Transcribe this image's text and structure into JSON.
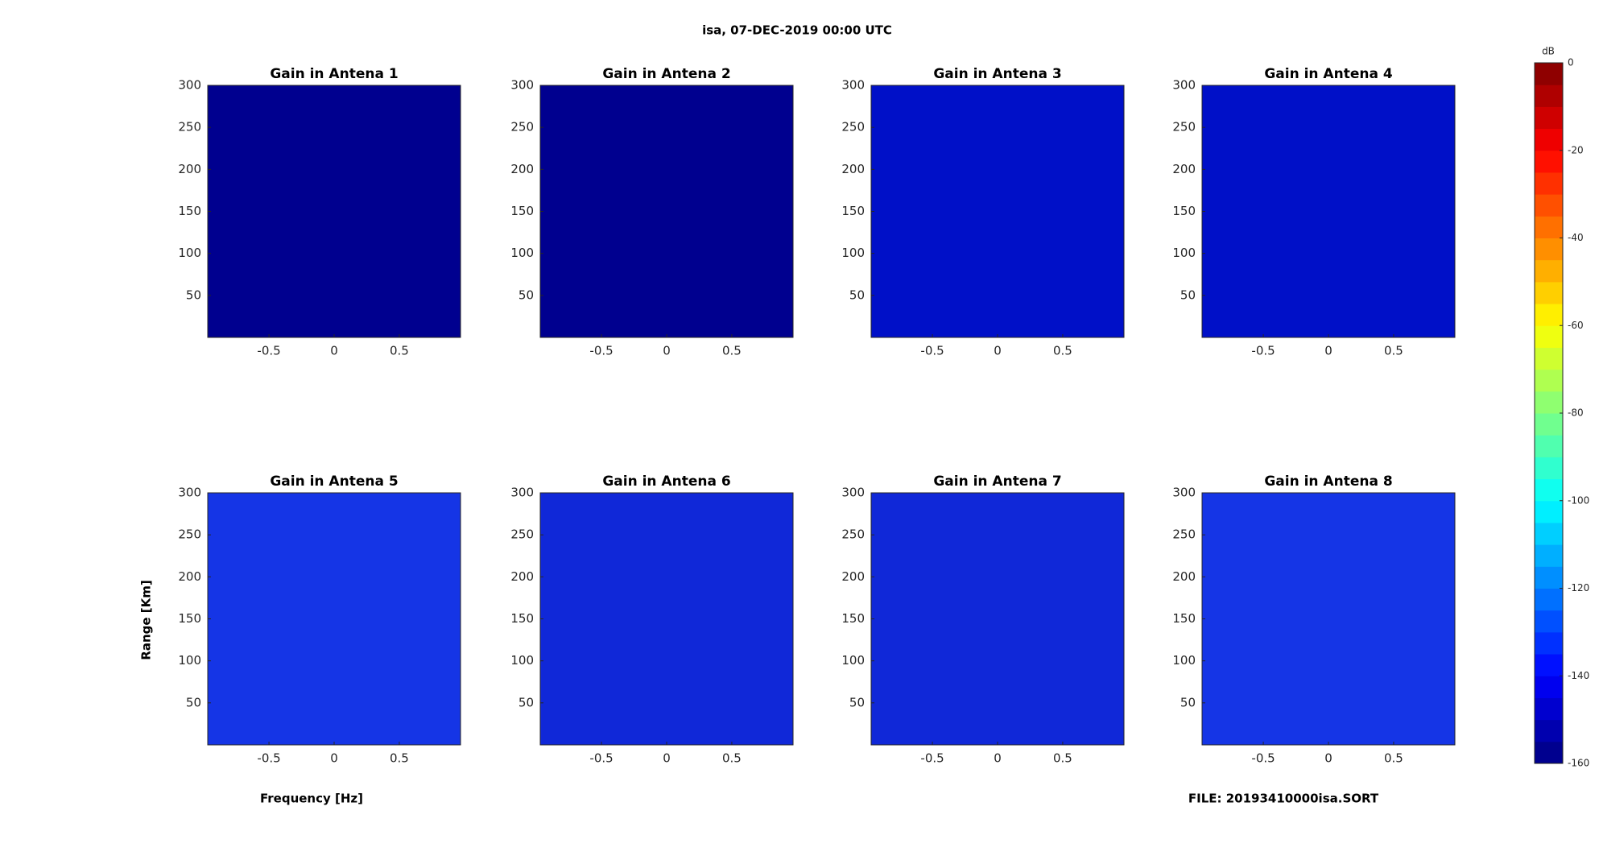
{
  "figure": {
    "title": "isa, 07-DEC-2019 00:00 UTC",
    "xlabel": "Frequency [Hz]",
    "ylabel": "Range [Km]",
    "footer": "FILE: 20193410000isa.SORT"
  },
  "colorbar": {
    "label": "dB",
    "clim": [
      -160,
      0
    ],
    "ticks": [
      0,
      -20,
      -40,
      -60,
      -80,
      -100,
      -120,
      -140,
      -160
    ],
    "colors": [
      "#00008f",
      "#0000af",
      "#0000cf",
      "#0000ef",
      "#0010ff",
      "#0030ff",
      "#0050ff",
      "#0070ff",
      "#008fff",
      "#00afff",
      "#00cfff",
      "#00efff",
      "#10ffef",
      "#30ffcf",
      "#50ffaf",
      "#70ff8f",
      "#8fff70",
      "#afff50",
      "#cfff30",
      "#efff10",
      "#ffef00",
      "#ffcf00",
      "#ffaf00",
      "#ff8f00",
      "#ff7000",
      "#ff5000",
      "#ff3000",
      "#ff1000",
      "#ef0000",
      "#cf0000",
      "#af0000",
      "#8f0000"
    ]
  },
  "chart_data": [
    {
      "type": "heatmap",
      "title": "Gain in Antena 1",
      "color": "#00008f",
      "xlim": [
        -0.97,
        0.97
      ],
      "ylim": [
        0,
        300
      ],
      "xticks": [
        -0.5,
        0,
        0.5
      ],
      "yticks": [
        50,
        100,
        150,
        200,
        250,
        300
      ]
    },
    {
      "type": "heatmap",
      "title": "Gain in Antena 2",
      "color": "#00008f",
      "xlim": [
        -0.97,
        0.97
      ],
      "ylim": [
        0,
        300
      ],
      "xticks": [
        -0.5,
        0,
        0.5
      ],
      "yticks": [
        50,
        100,
        150,
        200,
        250,
        300
      ]
    },
    {
      "type": "heatmap",
      "title": "Gain in Antena 3",
      "color": "#0010c8",
      "xlim": [
        -0.97,
        0.97
      ],
      "ylim": [
        0,
        300
      ],
      "xticks": [
        -0.5,
        0,
        0.5
      ],
      "yticks": [
        50,
        100,
        150,
        200,
        250,
        300
      ]
    },
    {
      "type": "heatmap",
      "title": "Gain in Antena 4",
      "color": "#0010c8",
      "xlim": [
        -0.97,
        0.97
      ],
      "ylim": [
        0,
        300
      ],
      "xticks": [
        -0.5,
        0,
        0.5
      ],
      "yticks": [
        50,
        100,
        150,
        200,
        250,
        300
      ]
    },
    {
      "type": "heatmap",
      "title": "Gain in Antena 5",
      "color": "#1535e6",
      "xlim": [
        -0.97,
        0.97
      ],
      "ylim": [
        0,
        300
      ],
      "xticks": [
        -0.5,
        0,
        0.5
      ],
      "yticks": [
        50,
        100,
        150,
        200,
        250,
        300
      ]
    },
    {
      "type": "heatmap",
      "title": "Gain in Antena 6",
      "color": "#1028d8",
      "xlim": [
        -0.97,
        0.97
      ],
      "ylim": [
        0,
        300
      ],
      "xticks": [
        -0.5,
        0,
        0.5
      ],
      "yticks": [
        50,
        100,
        150,
        200,
        250,
        300
      ]
    },
    {
      "type": "heatmap",
      "title": "Gain in Antena 7",
      "color": "#1028d8",
      "xlim": [
        -0.97,
        0.97
      ],
      "ylim": [
        0,
        300
      ],
      "xticks": [
        -0.5,
        0,
        0.5
      ],
      "yticks": [
        50,
        100,
        150,
        200,
        250,
        300
      ]
    },
    {
      "type": "heatmap",
      "title": "Gain in Antena 8",
      "color": "#1535e6",
      "xlim": [
        -0.97,
        0.97
      ],
      "ylim": [
        0,
        300
      ],
      "xticks": [
        -0.5,
        0,
        0.5
      ],
      "yticks": [
        50,
        100,
        150,
        200,
        250,
        300
      ]
    }
  ]
}
